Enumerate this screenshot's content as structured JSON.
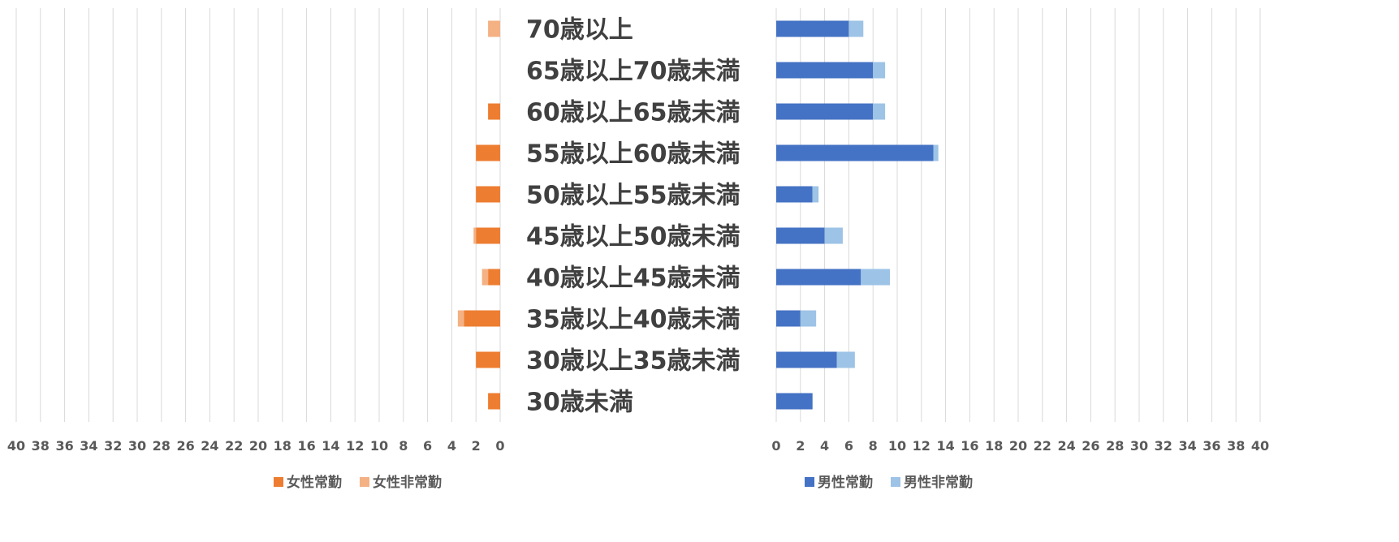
{
  "chart_data": [
    {
      "type": "bar",
      "orientation": "horizontal",
      "stacked": true,
      "direction": "reversed",
      "categories": [
        "70歳以上",
        "65歳以上70歳未満",
        "60歳以上65歳未満",
        "55歳以上60歳未満",
        "50歳以上55歳未満",
        "45歳以上50歳未満",
        "40歳以上45歳未満",
        "35歳以上40歳未満",
        "30歳以上35歳未満",
        "30歳未満"
      ],
      "series": [
        {
          "name": "女性常勤",
          "color": "#ED7D31",
          "values": [
            0,
            0,
            1,
            2,
            2,
            2,
            1,
            3,
            2,
            1
          ]
        },
        {
          "name": "女性非常勤",
          "color": "#F4B183",
          "values": [
            1,
            0,
            0,
            0,
            0,
            0.2,
            0.5,
            0.5,
            0,
            0
          ]
        }
      ],
      "xlim": [
        0,
        40
      ],
      "xticks": [
        "40",
        "38",
        "36",
        "34",
        "32",
        "30",
        "28",
        "26",
        "24",
        "22",
        "20",
        "18",
        "16",
        "14",
        "12",
        "10",
        "8",
        "6",
        "4",
        "2",
        "0"
      ],
      "grid": true,
      "legend_position": "bottom"
    },
    {
      "type": "bar",
      "orientation": "horizontal",
      "stacked": true,
      "direction": "normal",
      "categories": [
        "70歳以上",
        "65歳以上70歳未満",
        "60歳以上65歳未満",
        "55歳以上60歳未満",
        "50歳以上55歳未満",
        "45歳以上50歳未満",
        "40歳以上45歳未満",
        "35歳以上40歳未満",
        "30歳以上35歳未満",
        "30歳未満"
      ],
      "series": [
        {
          "name": "男性常勤",
          "color": "#4472C4",
          "values": [
            6,
            8,
            8,
            13,
            3,
            4,
            7,
            2,
            5,
            3
          ]
        },
        {
          "name": "男性非常勤",
          "color": "#9DC3E6",
          "values": [
            1.2,
            1,
            1,
            0.4,
            0.5,
            1.5,
            2.4,
            1.3,
            1.5,
            0
          ]
        }
      ],
      "xlim": [
        0,
        40
      ],
      "xticks": [
        "0",
        "2",
        "4",
        "6",
        "8",
        "10",
        "12",
        "14",
        "16",
        "18",
        "20",
        "22",
        "24",
        "26",
        "28",
        "30",
        "32",
        "34",
        "36",
        "38",
        "40"
      ],
      "grid": true,
      "legend_position": "bottom"
    }
  ]
}
